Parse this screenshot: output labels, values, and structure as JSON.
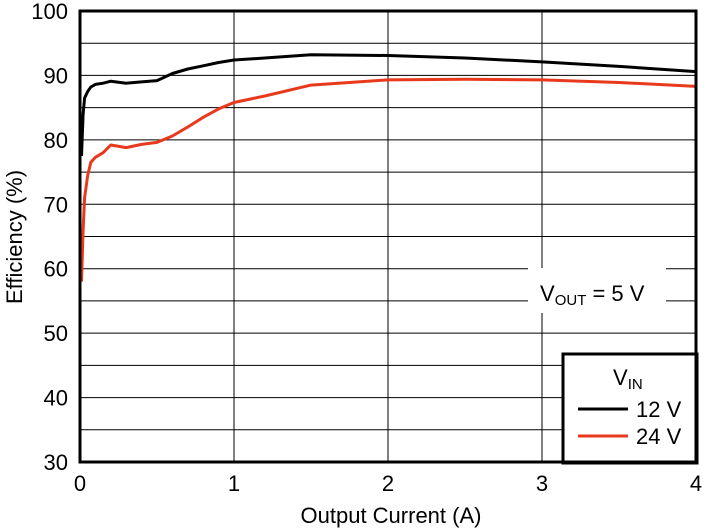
{
  "chart_data": {
    "type": "line",
    "title": "",
    "xlabel": "Output Current (A)",
    "ylabel": "Efficiency (%)",
    "xlim": [
      0,
      4
    ],
    "ylim": [
      30,
      100
    ],
    "x_ticks": [
      "0",
      "1",
      "2",
      "3",
      "4"
    ],
    "y_ticks": [
      "30",
      "40",
      "50",
      "60",
      "70",
      "80",
      "90",
      "100"
    ],
    "grid": true,
    "annotation": {
      "main": "V",
      "sub": "OUT",
      "rest": " = 5 V"
    },
    "legend": {
      "title_main": "V",
      "title_sub": "IN",
      "placement": "bottom-right"
    },
    "series": [
      {
        "name": "12 V",
        "color": "#000000",
        "x": [
          0.01,
          0.02,
          0.03,
          0.05,
          0.07,
          0.1,
          0.15,
          0.2,
          0.3,
          0.4,
          0.5,
          0.6,
          0.7,
          0.8,
          0.9,
          1.0,
          1.2,
          1.5,
          2.0,
          2.5,
          3.0,
          3.5,
          4.0
        ],
        "y": [
          77.5,
          84,
          86.5,
          87.5,
          88.2,
          88.6,
          88.8,
          89.1,
          88.8,
          89.0,
          89.2,
          90.3,
          91.0,
          91.5,
          92.0,
          92.4,
          92.7,
          93.2,
          93.1,
          92.7,
          92.1,
          91.4,
          90.6
        ]
      },
      {
        "name": "24 V",
        "color": "#e8391d",
        "x": [
          0.01,
          0.02,
          0.03,
          0.05,
          0.07,
          0.1,
          0.15,
          0.2,
          0.3,
          0.4,
          0.5,
          0.6,
          0.7,
          0.8,
          0.9,
          1.0,
          1.2,
          1.5,
          2.0,
          2.5,
          3.0,
          3.5,
          4.0
        ],
        "y": [
          58,
          66,
          71,
          74.5,
          76.5,
          77.3,
          78.0,
          79.2,
          78.8,
          79.3,
          79.6,
          80.6,
          82.0,
          83.5,
          84.8,
          85.8,
          86.8,
          88.5,
          89.3,
          89.4,
          89.3,
          88.9,
          88.3
        ]
      }
    ]
  }
}
